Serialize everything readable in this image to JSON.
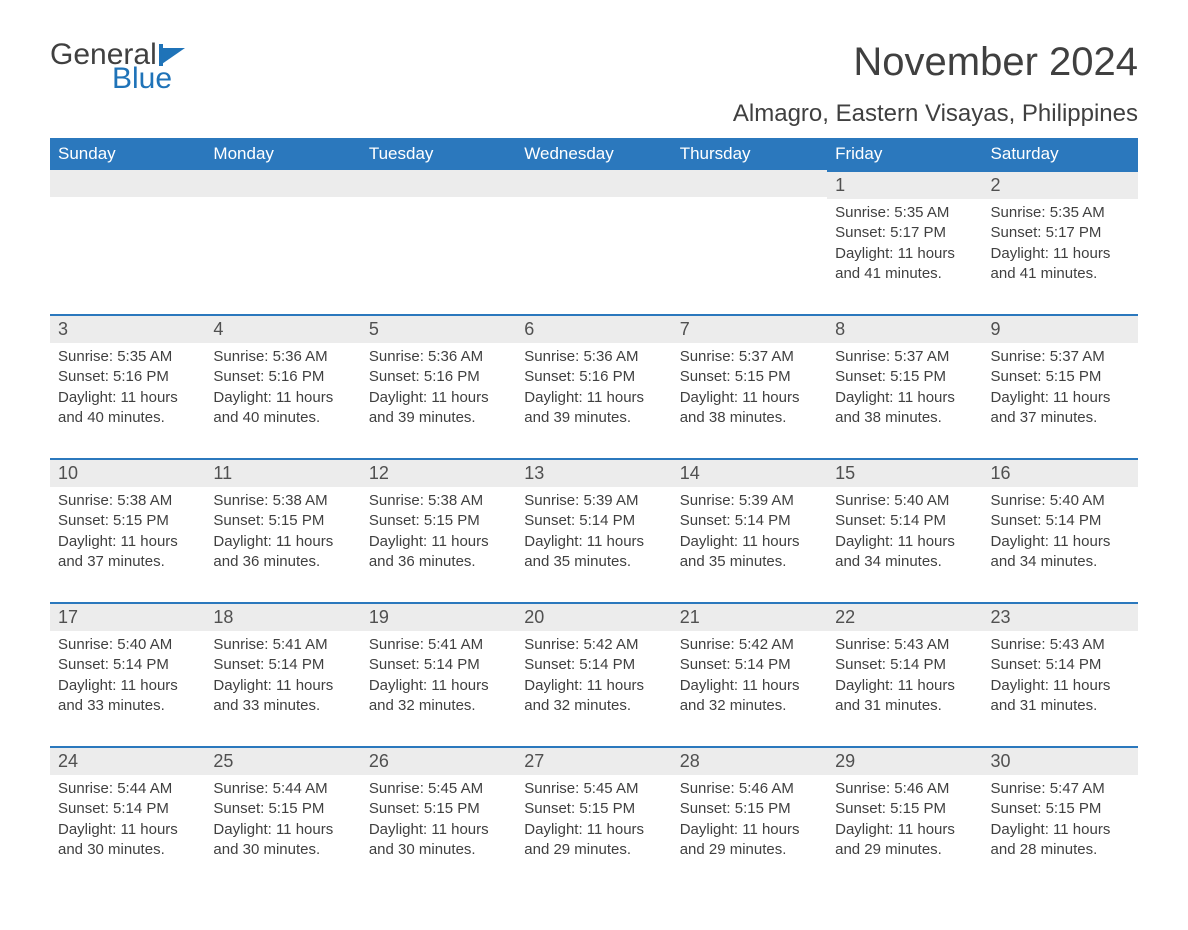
{
  "logo": {
    "text1": "General",
    "text2": "Blue",
    "flag_color": "#1f73b8"
  },
  "title": "November 2024",
  "location": "Almagro, Eastern Visayas, Philippines",
  "header_bg": "#2b78bd",
  "header_fg": "#ffffff",
  "daynum_bg": "#ececec",
  "accent_border": "#2b78bd",
  "text_color": "#404040",
  "background": "#ffffff",
  "title_fontsize": 40,
  "subtitle_fontsize": 24,
  "header_fontsize": 17,
  "daynum_fontsize": 18,
  "body_fontsize": 15,
  "weekdays": [
    "Sunday",
    "Monday",
    "Tuesday",
    "Wednesday",
    "Thursday",
    "Friday",
    "Saturday"
  ],
  "weeks": [
    [
      null,
      null,
      null,
      null,
      null,
      {
        "n": "1",
        "sunrise": "Sunrise: 5:35 AM",
        "sunset": "Sunset: 5:17 PM",
        "daylight": "Daylight: 11 hours and 41 minutes."
      },
      {
        "n": "2",
        "sunrise": "Sunrise: 5:35 AM",
        "sunset": "Sunset: 5:17 PM",
        "daylight": "Daylight: 11 hours and 41 minutes."
      }
    ],
    [
      {
        "n": "3",
        "sunrise": "Sunrise: 5:35 AM",
        "sunset": "Sunset: 5:16 PM",
        "daylight": "Daylight: 11 hours and 40 minutes."
      },
      {
        "n": "4",
        "sunrise": "Sunrise: 5:36 AM",
        "sunset": "Sunset: 5:16 PM",
        "daylight": "Daylight: 11 hours and 40 minutes."
      },
      {
        "n": "5",
        "sunrise": "Sunrise: 5:36 AM",
        "sunset": "Sunset: 5:16 PM",
        "daylight": "Daylight: 11 hours and 39 minutes."
      },
      {
        "n": "6",
        "sunrise": "Sunrise: 5:36 AM",
        "sunset": "Sunset: 5:16 PM",
        "daylight": "Daylight: 11 hours and 39 minutes."
      },
      {
        "n": "7",
        "sunrise": "Sunrise: 5:37 AM",
        "sunset": "Sunset: 5:15 PM",
        "daylight": "Daylight: 11 hours and 38 minutes."
      },
      {
        "n": "8",
        "sunrise": "Sunrise: 5:37 AM",
        "sunset": "Sunset: 5:15 PM",
        "daylight": "Daylight: 11 hours and 38 minutes."
      },
      {
        "n": "9",
        "sunrise": "Sunrise: 5:37 AM",
        "sunset": "Sunset: 5:15 PM",
        "daylight": "Daylight: 11 hours and 37 minutes."
      }
    ],
    [
      {
        "n": "10",
        "sunrise": "Sunrise: 5:38 AM",
        "sunset": "Sunset: 5:15 PM",
        "daylight": "Daylight: 11 hours and 37 minutes."
      },
      {
        "n": "11",
        "sunrise": "Sunrise: 5:38 AM",
        "sunset": "Sunset: 5:15 PM",
        "daylight": "Daylight: 11 hours and 36 minutes."
      },
      {
        "n": "12",
        "sunrise": "Sunrise: 5:38 AM",
        "sunset": "Sunset: 5:15 PM",
        "daylight": "Daylight: 11 hours and 36 minutes."
      },
      {
        "n": "13",
        "sunrise": "Sunrise: 5:39 AM",
        "sunset": "Sunset: 5:14 PM",
        "daylight": "Daylight: 11 hours and 35 minutes."
      },
      {
        "n": "14",
        "sunrise": "Sunrise: 5:39 AM",
        "sunset": "Sunset: 5:14 PM",
        "daylight": "Daylight: 11 hours and 35 minutes."
      },
      {
        "n": "15",
        "sunrise": "Sunrise: 5:40 AM",
        "sunset": "Sunset: 5:14 PM",
        "daylight": "Daylight: 11 hours and 34 minutes."
      },
      {
        "n": "16",
        "sunrise": "Sunrise: 5:40 AM",
        "sunset": "Sunset: 5:14 PM",
        "daylight": "Daylight: 11 hours and 34 minutes."
      }
    ],
    [
      {
        "n": "17",
        "sunrise": "Sunrise: 5:40 AM",
        "sunset": "Sunset: 5:14 PM",
        "daylight": "Daylight: 11 hours and 33 minutes."
      },
      {
        "n": "18",
        "sunrise": "Sunrise: 5:41 AM",
        "sunset": "Sunset: 5:14 PM",
        "daylight": "Daylight: 11 hours and 33 minutes."
      },
      {
        "n": "19",
        "sunrise": "Sunrise: 5:41 AM",
        "sunset": "Sunset: 5:14 PM",
        "daylight": "Daylight: 11 hours and 32 minutes."
      },
      {
        "n": "20",
        "sunrise": "Sunrise: 5:42 AM",
        "sunset": "Sunset: 5:14 PM",
        "daylight": "Daylight: 11 hours and 32 minutes."
      },
      {
        "n": "21",
        "sunrise": "Sunrise: 5:42 AM",
        "sunset": "Sunset: 5:14 PM",
        "daylight": "Daylight: 11 hours and 32 minutes."
      },
      {
        "n": "22",
        "sunrise": "Sunrise: 5:43 AM",
        "sunset": "Sunset: 5:14 PM",
        "daylight": "Daylight: 11 hours and 31 minutes."
      },
      {
        "n": "23",
        "sunrise": "Sunrise: 5:43 AM",
        "sunset": "Sunset: 5:14 PM",
        "daylight": "Daylight: 11 hours and 31 minutes."
      }
    ],
    [
      {
        "n": "24",
        "sunrise": "Sunrise: 5:44 AM",
        "sunset": "Sunset: 5:14 PM",
        "daylight": "Daylight: 11 hours and 30 minutes."
      },
      {
        "n": "25",
        "sunrise": "Sunrise: 5:44 AM",
        "sunset": "Sunset: 5:15 PM",
        "daylight": "Daylight: 11 hours and 30 minutes."
      },
      {
        "n": "26",
        "sunrise": "Sunrise: 5:45 AM",
        "sunset": "Sunset: 5:15 PM",
        "daylight": "Daylight: 11 hours and 30 minutes."
      },
      {
        "n": "27",
        "sunrise": "Sunrise: 5:45 AM",
        "sunset": "Sunset: 5:15 PM",
        "daylight": "Daylight: 11 hours and 29 minutes."
      },
      {
        "n": "28",
        "sunrise": "Sunrise: 5:46 AM",
        "sunset": "Sunset: 5:15 PM",
        "daylight": "Daylight: 11 hours and 29 minutes."
      },
      {
        "n": "29",
        "sunrise": "Sunrise: 5:46 AM",
        "sunset": "Sunset: 5:15 PM",
        "daylight": "Daylight: 11 hours and 29 minutes."
      },
      {
        "n": "30",
        "sunrise": "Sunrise: 5:47 AM",
        "sunset": "Sunset: 5:15 PM",
        "daylight": "Daylight: 11 hours and 28 minutes."
      }
    ]
  ]
}
